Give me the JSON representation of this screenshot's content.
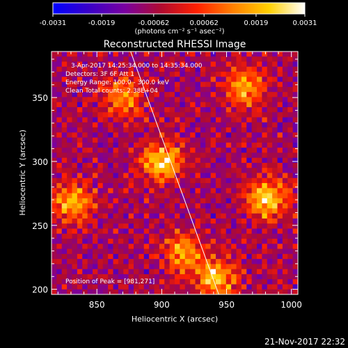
{
  "colorbar": {
    "tick_labels": [
      "-0.0031",
      "-0.0019",
      "-0.00062",
      "0.00062",
      "0.0019",
      "0.0031"
    ],
    "tick_values": [
      -0.0031,
      -0.0019,
      -0.00062,
      0.00062,
      0.0019,
      0.0031
    ],
    "range": [
      -0.0031,
      0.0031
    ],
    "unit_label": "(photons cm⁻² s⁻¹ asec⁻²)",
    "colors": [
      "#0000ff",
      "#3a00c8",
      "#7a00a0",
      "#b00a30",
      "#ff2000",
      "#ff8000",
      "#ffd000",
      "#ffffff"
    ]
  },
  "chart_data": {
    "type": "heatmap",
    "title": "Reconstructed RHESSI Image",
    "xlabel": "Heliocentric X (arcsec)",
    "ylabel": "Heliocentric Y (arcsec)",
    "xlim": [
      815,
      1005
    ],
    "ylim": [
      196,
      386
    ],
    "xticks": [
      850,
      900,
      950,
      1000
    ],
    "yticks": [
      200,
      250,
      300,
      350
    ],
    "xtick_labels": [
      "850",
      "900",
      "950",
      "1000"
    ],
    "ytick_labels": [
      "200",
      "250",
      "300",
      "350"
    ],
    "grid": false,
    "annotations": [
      "3-Apr-2017 14:25:34.000 to 14:35:34.000",
      "Detectors: 3F 6F  Att 1",
      "Energy Range: 100.0 - 300.0 keV",
      "Clean     Total counts: 2.38E+04"
    ],
    "peak_label": "Position of Peak = [981,271]",
    "peak": [
      981,
      271
    ],
    "limb_line": [
      [
        876,
        386
      ],
      [
        944,
        196
      ]
    ],
    "sources": [
      {
        "x": 900,
        "y": 300,
        "peak": 0.003
      },
      {
        "x": 981,
        "y": 271,
        "peak": 0.0031
      },
      {
        "x": 830,
        "y": 268,
        "peak": 0.0026
      },
      {
        "x": 917,
        "y": 228,
        "peak": 0.0024
      },
      {
        "x": 942,
        "y": 208,
        "peak": 0.0028
      },
      {
        "x": 870,
        "y": 350,
        "peak": 0.0022
      },
      {
        "x": 965,
        "y": 358,
        "peak": 0.0023
      }
    ]
  },
  "footer": {
    "timestamp": "21-Nov-2017 22:32"
  }
}
